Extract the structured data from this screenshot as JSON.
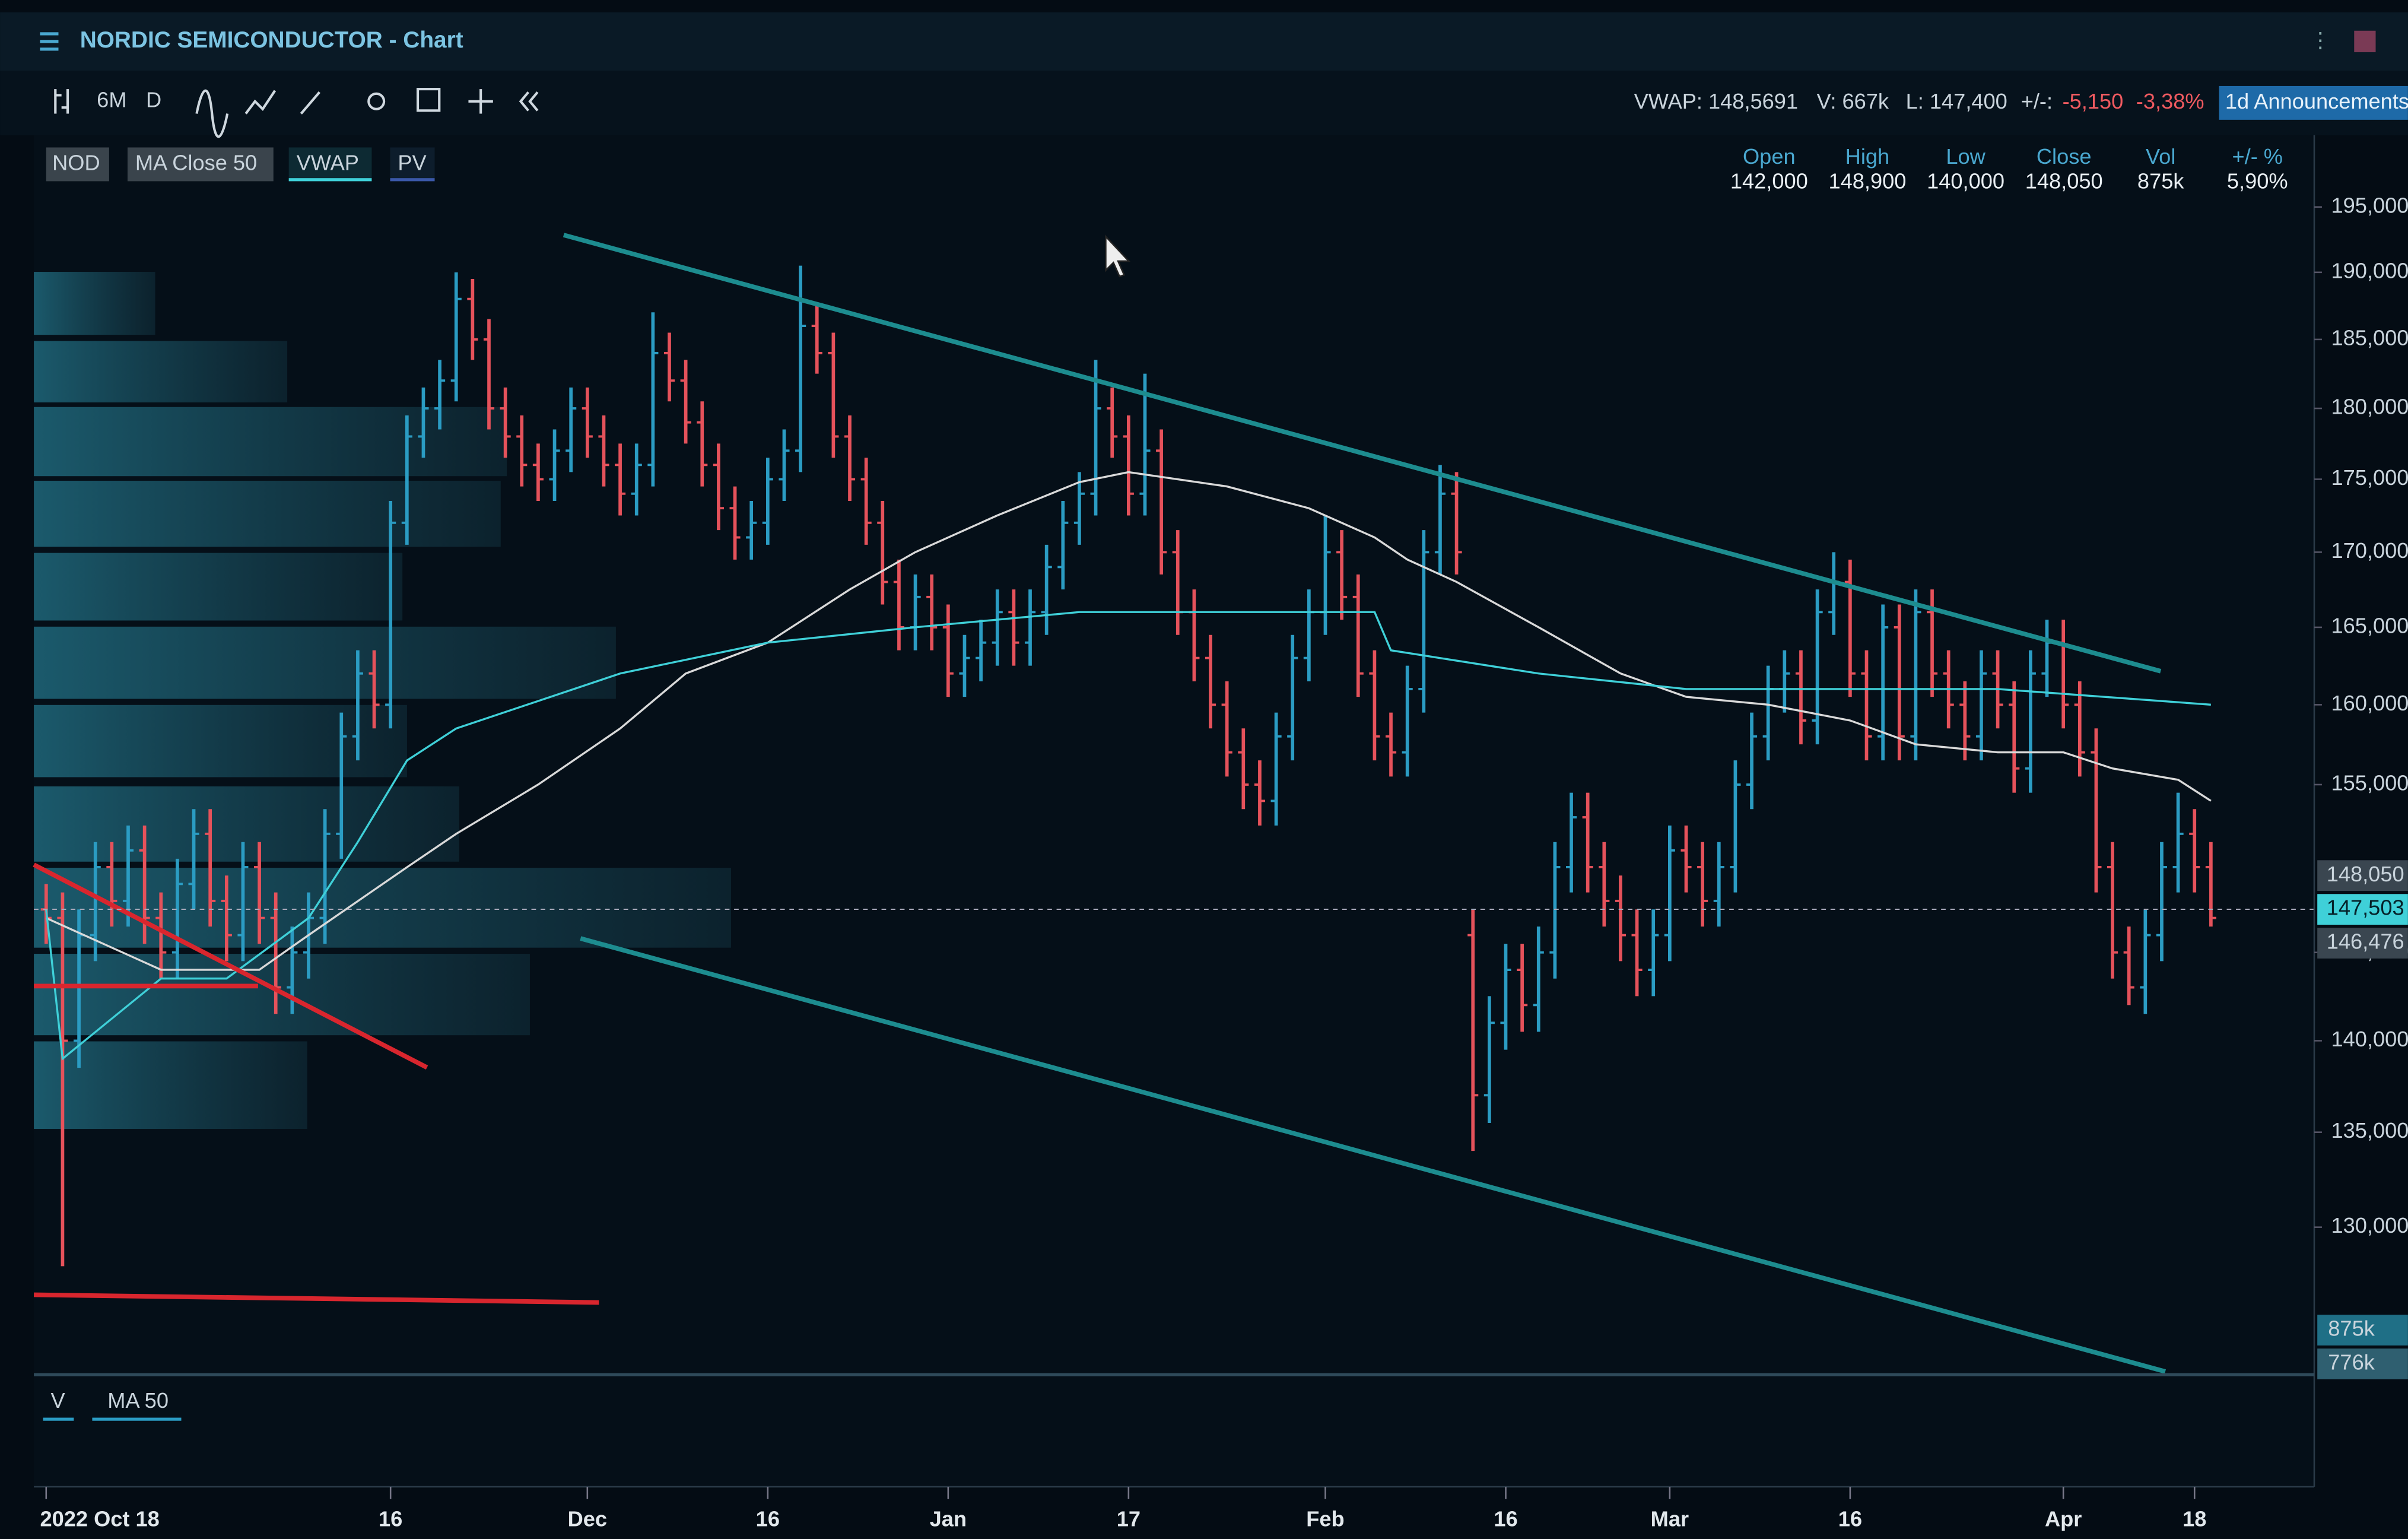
{
  "header": {
    "title": "NORDIC SEMICONDUCTOR - Chart",
    "toolbar": [
      "6M",
      "D"
    ],
    "quote": {
      "vwap": "VWAP: 148,5691",
      "volume": "V: 667k",
      "last": "L: 147,400",
      "change_label": "+/-:",
      "change": "-5,150",
      "change_pct": "-3,38%"
    },
    "announcements": "1d Announcements"
  },
  "ohlc_box": {
    "labels": [
      "Open",
      "High",
      "Low",
      "Close",
      "Vol",
      "+/- %"
    ],
    "values": [
      "142,000",
      "148,900",
      "140,000",
      "148,050",
      "875k",
      "5,90%"
    ]
  },
  "volume_panel": {
    "labels": [
      "V",
      "MA 50"
    ],
    "markers": [
      "875k",
      "776k"
    ]
  },
  "chart_data": {
    "type": "ohlc",
    "symbol": "NOD",
    "profile_label": "PV",
    "up_color": "#2b9cc3",
    "down_color": "#e5525b",
    "log": true,
    "ylim": [
      122.75,
      200.4
    ],
    "yticks": [
      {
        "value": 195,
        "label": "195,000"
      },
      {
        "value": 190,
        "label": "190,000"
      },
      {
        "value": 185,
        "label": "185,000"
      },
      {
        "value": 180,
        "label": "180,000"
      },
      {
        "value": 175,
        "label": "175,000"
      },
      {
        "value": 170,
        "label": "170,000"
      },
      {
        "value": 165,
        "label": "165,000"
      },
      {
        "value": 160,
        "label": "160,000"
      },
      {
        "value": 155,
        "label": "155,000"
      },
      {
        "value": 145,
        "label": "145,000"
      },
      {
        "value": 140,
        "label": "140,000"
      },
      {
        "value": 135,
        "label": "135,000"
      },
      {
        "value": 130,
        "label": "130,000"
      }
    ],
    "xlim": [
      -0.75,
      138.3
    ],
    "xticks": [
      {
        "value": 0,
        "label": "2022 Oct 18"
      },
      {
        "value": 21,
        "label": "16"
      },
      {
        "value": 33,
        "label": "Dec"
      },
      {
        "value": 44,
        "label": "16"
      },
      {
        "value": 55,
        "label": "Jan"
      },
      {
        "value": 66,
        "label": "17"
      },
      {
        "value": 78,
        "label": "Feb"
      },
      {
        "value": 89,
        "label": "16"
      },
      {
        "value": 99,
        "label": "Mar"
      },
      {
        "value": 110,
        "label": "16"
      },
      {
        "value": 123,
        "label": "Apr"
      },
      {
        "value": 131,
        "label": "18"
      }
    ],
    "ohlc": [
      [
        147.5,
        149,
        145.5,
        147
      ],
      [
        147,
        148.5,
        128,
        140
      ],
      [
        140,
        147.5,
        138.5,
        146
      ],
      [
        146,
        151.5,
        144.5,
        150
      ],
      [
        150,
        151.5,
        146.5,
        148
      ],
      [
        148,
        152.5,
        146.5,
        151
      ],
      [
        151,
        152.5,
        145.5,
        147
      ],
      [
        147,
        148.5,
        143.5,
        145
      ],
      [
        145,
        150.5,
        143.5,
        149
      ],
      [
        149,
        153.5,
        147.5,
        152
      ],
      [
        152,
        153.5,
        146.5,
        148
      ],
      [
        148,
        149.5,
        144.5,
        146
      ],
      [
        146,
        151.5,
        144.5,
        150
      ],
      [
        150,
        151.5,
        145.5,
        147
      ],
      [
        147,
        148.5,
        141.5,
        143
      ],
      [
        143,
        146.5,
        141.5,
        145
      ],
      [
        145,
        148.5,
        143.5,
        147
      ],
      [
        147,
        153.5,
        145.5,
        152
      ],
      [
        152,
        159.5,
        150.5,
        158
      ],
      [
        158,
        163.5,
        156.5,
        162
      ],
      [
        162,
        163.5,
        158.5,
        160
      ],
      [
        160,
        173.5,
        158.5,
        172
      ],
      [
        172,
        179.5,
        170.5,
        178
      ],
      [
        178,
        181.5,
        176.5,
        180
      ],
      [
        180,
        183.5,
        178.5,
        182
      ],
      [
        182,
        190,
        180.5,
        188
      ],
      [
        188,
        189.5,
        183.5,
        185
      ],
      [
        185,
        186.5,
        178.5,
        180
      ],
      [
        180,
        181.5,
        176.5,
        178
      ],
      [
        178,
        179.5,
        174.5,
        176
      ],
      [
        176,
        177.5,
        173.5,
        175
      ],
      [
        175,
        178.5,
        173.5,
        177
      ],
      [
        177,
        181.5,
        175.5,
        180
      ],
      [
        180,
        181.5,
        176.5,
        178
      ],
      [
        178,
        179.5,
        174.5,
        176
      ],
      [
        176,
        177.5,
        172.5,
        174
      ],
      [
        174,
        177.5,
        172.5,
        176
      ],
      [
        176,
        187,
        174.5,
        184
      ],
      [
        184,
        185.5,
        180.5,
        182
      ],
      [
        182,
        183.5,
        177.5,
        179
      ],
      [
        179,
        180.5,
        174.5,
        176
      ],
      [
        176,
        177.5,
        171.5,
        173
      ],
      [
        173,
        174.5,
        169.5,
        171
      ],
      [
        171,
        173.5,
        169.5,
        172
      ],
      [
        172,
        176.5,
        170.5,
        175
      ],
      [
        175,
        178.5,
        173.5,
        177
      ],
      [
        177,
        190.5,
        175.5,
        186
      ],
      [
        186,
        187.5,
        182.5,
        184
      ],
      [
        184,
        185.5,
        176.5,
        178
      ],
      [
        178,
        179.5,
        173.5,
        175
      ],
      [
        175,
        176.5,
        170.5,
        172
      ],
      [
        172,
        173.5,
        166.5,
        168
      ],
      [
        168,
        169.5,
        163.5,
        165
      ],
      [
        165,
        168.5,
        163.5,
        167
      ],
      [
        167,
        168.5,
        163.5,
        165
      ],
      [
        165,
        166.5,
        160.5,
        162
      ],
      [
        162,
        164.5,
        160.5,
        163
      ],
      [
        163,
        165.5,
        161.5,
        164
      ],
      [
        164,
        167.5,
        162.5,
        166
      ],
      [
        166,
        167.5,
        162.5,
        164
      ],
      [
        164,
        167.5,
        162.5,
        166
      ],
      [
        166,
        170.5,
        164.5,
        169
      ],
      [
        169,
        173.5,
        167.5,
        172
      ],
      [
        172,
        175.5,
        170.5,
        174
      ],
      [
        174,
        183.5,
        172.5,
        180
      ],
      [
        180,
        181.5,
        176.5,
        178
      ],
      [
        178,
        179.5,
        172.5,
        174
      ],
      [
        174,
        182.5,
        172.5,
        177
      ],
      [
        177,
        178.5,
        168.5,
        170
      ],
      [
        170,
        171.5,
        164.5,
        166
      ],
      [
        166,
        167.5,
        161.5,
        163
      ],
      [
        163,
        164.5,
        158.5,
        160
      ],
      [
        160,
        161.5,
        155.5,
        157
      ],
      [
        157,
        158.5,
        153.5,
        155
      ],
      [
        155,
        156.5,
        152.5,
        154
      ],
      [
        154,
        159.5,
        152.5,
        158
      ],
      [
        158,
        164.5,
        156.5,
        163
      ],
      [
        163,
        167.5,
        161.5,
        166
      ],
      [
        166,
        172.5,
        164.5,
        170
      ],
      [
        170,
        171.5,
        165.5,
        167
      ],
      [
        167,
        168.5,
        160.5,
        162
      ],
      [
        162,
        163.5,
        156.5,
        158
      ],
      [
        158,
        159.5,
        155.5,
        157
      ],
      [
        157,
        162.5,
        155.5,
        161
      ],
      [
        161,
        171.5,
        159.5,
        170
      ],
      [
        170,
        176,
        168.5,
        174
      ],
      [
        174,
        175.5,
        168.5,
        170
      ],
      [
        146,
        147.5,
        134,
        137
      ],
      [
        137,
        142.5,
        135.5,
        141
      ],
      [
        141,
        145.5,
        139.5,
        144
      ],
      [
        144,
        145.5,
        140.5,
        142
      ],
      [
        142,
        146.5,
        140.5,
        145
      ],
      [
        145,
        151.5,
        143.5,
        150
      ],
      [
        150,
        154.5,
        148.5,
        153
      ],
      [
        153,
        154.5,
        148.5,
        150
      ],
      [
        150,
        151.5,
        146.5,
        148
      ],
      [
        148,
        149.5,
        144.5,
        146
      ],
      [
        146,
        147.5,
        142.5,
        144
      ],
      [
        144,
        147.5,
        142.5,
        146
      ],
      [
        146,
        152.5,
        144.5,
        151
      ],
      [
        151,
        152.5,
        148.5,
        150
      ],
      [
        150,
        151.5,
        146.5,
        148
      ],
      [
        148,
        151.5,
        146.5,
        150
      ],
      [
        150,
        156.5,
        148.5,
        155
      ],
      [
        155,
        159.5,
        153.5,
        158
      ],
      [
        158,
        162.5,
        156.5,
        161
      ],
      [
        161,
        163.5,
        159.5,
        162
      ],
      [
        162,
        163.5,
        157.5,
        159
      ],
      [
        159,
        167.5,
        157.5,
        166
      ],
      [
        166,
        170,
        164.5,
        168
      ],
      [
        168,
        169.5,
        160.5,
        162
      ],
      [
        162,
        163.5,
        156.5,
        158
      ],
      [
        158,
        166.5,
        156.5,
        165
      ],
      [
        165,
        166.5,
        156.5,
        158
      ],
      [
        158,
        167.5,
        156.5,
        166
      ],
      [
        166,
        167.5,
        160.5,
        162
      ],
      [
        162,
        163.5,
        158.5,
        160
      ],
      [
        160,
        161.5,
        156.5,
        158
      ],
      [
        158,
        163.5,
        156.5,
        162
      ],
      [
        162,
        163.5,
        158.5,
        160
      ],
      [
        160,
        161.5,
        154.5,
        156
      ],
      [
        156,
        163.5,
        154.5,
        162
      ],
      [
        162,
        165.5,
        160.5,
        164
      ],
      [
        164,
        165.5,
        158.5,
        160
      ],
      [
        160,
        161.5,
        155.5,
        157
      ],
      [
        157,
        158.5,
        148.5,
        150
      ],
      [
        150,
        151.5,
        143.5,
        145
      ],
      [
        145,
        146.5,
        142,
        143
      ],
      [
        143,
        147.5,
        141.5,
        146
      ],
      [
        146,
        151.5,
        144.5,
        150
      ],
      [
        150,
        154.5,
        148.5,
        152
      ],
      [
        152,
        153.5,
        148.5,
        150
      ],
      [
        150,
        151.5,
        146.5,
        147
      ]
    ],
    "series": [
      {
        "name": "MA Close 50",
        "color": "#d9d9d9",
        "x": [
          0,
          7,
          13,
          16,
          22,
          25,
          30,
          35,
          39,
          44,
          49,
          53,
          58,
          63,
          66,
          72,
          77,
          81,
          83,
          86,
          91,
          96,
          100,
          105,
          110,
          114,
          119,
          123,
          126,
          130,
          132
        ],
        "values": [
          147,
          144,
          144,
          146,
          150,
          152,
          155,
          158.5,
          162,
          164,
          167.5,
          170,
          172.5,
          174.8,
          175.5,
          174.5,
          173,
          171,
          169.5,
          168,
          165,
          162,
          160.5,
          160,
          159,
          157.5,
          157,
          157,
          156,
          155.3,
          154
        ]
      },
      {
        "name": "VWAP",
        "color": "#3fd0d8",
        "x": [
          0,
          1,
          7,
          11,
          16,
          19,
          22,
          25,
          35,
          44,
          53,
          63,
          72,
          81,
          82,
          91,
          100,
          110,
          119,
          132
        ],
        "values": [
          147.5,
          139,
          143.5,
          143.5,
          147,
          151.5,
          156.5,
          158.5,
          162,
          164,
          165,
          166,
          166,
          166,
          163.5,
          162,
          161,
          161,
          161,
          160
        ]
      }
    ],
    "price_labels": [
      {
        "value": 148.05,
        "label": "148,050"
      },
      {
        "value": 147.503,
        "label": "147,503"
      },
      {
        "value": 146.476,
        "label": "146,476"
      }
    ]
  }
}
